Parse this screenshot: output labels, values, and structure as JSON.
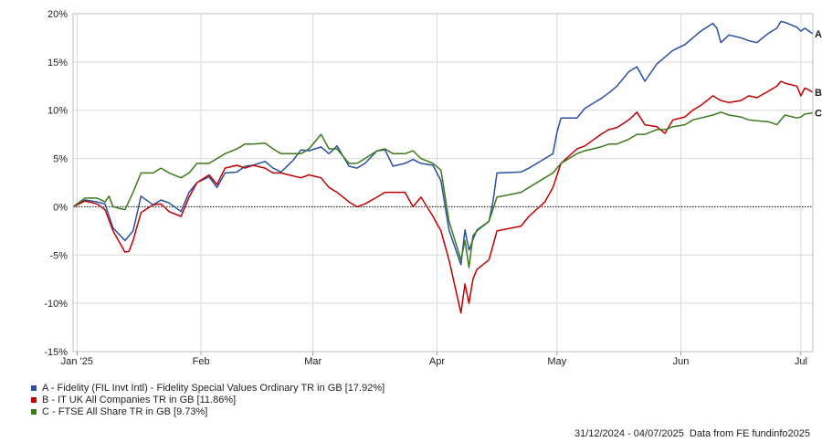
{
  "chart_data": {
    "type": "line",
    "ylim": [
      -15,
      20
    ],
    "yticks": [
      -15,
      -10,
      -5,
      0,
      5,
      10,
      15,
      20
    ],
    "ytick_labels": [
      "-15%",
      "-10%",
      "-5%",
      "0%",
      "5%",
      "10%",
      "15%",
      "20%"
    ],
    "xlim": [
      "2024-12-31",
      "2025-07-04"
    ],
    "xticks": [
      {
        "date": "2025-01-01",
        "label": "Jan '25"
      },
      {
        "date": "2025-02-01",
        "label": "Feb"
      },
      {
        "date": "2025-03-01",
        "label": "Mar"
      },
      {
        "date": "2025-04-01",
        "label": "Apr"
      },
      {
        "date": "2025-05-01",
        "label": "May"
      },
      {
        "date": "2025-06-01",
        "label": "Jun"
      },
      {
        "date": "2025-07-01",
        "label": "Jul"
      }
    ],
    "grid": true,
    "legend_position": "bottom-left",
    "series": [
      {
        "name": "A - Fidelity (FIL Invt Intl) - Fidelity Special Values Ordinary TR in GB [17.92%]",
        "end_label": "A",
        "color": "#2b4fa3",
        "points": [
          [
            "2024-12-31",
            0
          ],
          [
            "2025-01-03",
            0.7
          ],
          [
            "2025-01-06",
            0.5
          ],
          [
            "2025-01-08",
            0.3
          ],
          [
            "2025-01-10",
            -2.2
          ],
          [
            "2025-01-13",
            -3.5
          ],
          [
            "2025-01-15",
            -2.5
          ],
          [
            "2025-01-17",
            1.1
          ],
          [
            "2025-01-20",
            0.2
          ],
          [
            "2025-01-22",
            0.7
          ],
          [
            "2025-01-24",
            0.4
          ],
          [
            "2025-01-27",
            -0.5
          ],
          [
            "2025-01-29",
            1.5
          ],
          [
            "2025-01-31",
            2.5
          ],
          [
            "2025-02-03",
            3.1
          ],
          [
            "2025-02-05",
            2.0
          ],
          [
            "2025-02-07",
            3.5
          ],
          [
            "2025-02-10",
            3.6
          ],
          [
            "2025-02-12",
            4.2
          ],
          [
            "2025-02-14",
            4.3
          ],
          [
            "2025-02-17",
            4.7
          ],
          [
            "2025-02-19",
            4.0
          ],
          [
            "2025-02-21",
            3.6
          ],
          [
            "2025-02-24",
            4.8
          ],
          [
            "2025-02-26",
            5.9
          ],
          [
            "2025-02-28",
            5.8
          ],
          [
            "2025-03-03",
            6.2
          ],
          [
            "2025-03-05",
            5.5
          ],
          [
            "2025-03-07",
            6.3
          ],
          [
            "2025-03-10",
            4.2
          ],
          [
            "2025-03-12",
            4.0
          ],
          [
            "2025-03-14",
            4.5
          ],
          [
            "2025-03-17",
            5.8
          ],
          [
            "2025-03-19",
            5.9
          ],
          [
            "2025-03-21",
            4.2
          ],
          [
            "2025-03-24",
            4.5
          ],
          [
            "2025-03-26",
            4.9
          ],
          [
            "2025-03-28",
            4.5
          ],
          [
            "2025-03-31",
            4.3
          ],
          [
            "2025-04-02",
            2.7
          ],
          [
            "2025-04-04",
            -2.4
          ],
          [
            "2025-04-07",
            -6.0
          ],
          [
            "2025-04-08",
            -2.4
          ],
          [
            "2025-04-09",
            -4.5
          ],
          [
            "2025-04-10",
            -3.4
          ],
          [
            "2025-04-11",
            -2.4
          ],
          [
            "2025-04-14",
            -1.5
          ],
          [
            "2025-04-15",
            0.5
          ],
          [
            "2025-04-16",
            3.5
          ],
          [
            "2025-04-22",
            3.6
          ],
          [
            "2025-04-24",
            4.0
          ],
          [
            "2025-04-28",
            5.0
          ],
          [
            "2025-04-30",
            5.5
          ],
          [
            "2025-05-01",
            7.7
          ],
          [
            "2025-05-02",
            9.2
          ],
          [
            "2025-05-06",
            9.2
          ],
          [
            "2025-05-08",
            10.2
          ],
          [
            "2025-05-12",
            11.2
          ],
          [
            "2025-05-14",
            11.8
          ],
          [
            "2025-05-16",
            12.5
          ],
          [
            "2025-05-19",
            14.0
          ],
          [
            "2025-05-21",
            14.5
          ],
          [
            "2025-05-23",
            13.0
          ],
          [
            "2025-05-26",
            14.8
          ],
          [
            "2025-05-28",
            15.5
          ],
          [
            "2025-05-30",
            16.2
          ],
          [
            "2025-06-02",
            16.8
          ],
          [
            "2025-06-04",
            17.5
          ],
          [
            "2025-06-06",
            18.2
          ],
          [
            "2025-06-09",
            19.0
          ],
          [
            "2025-06-10",
            18.5
          ],
          [
            "2025-06-11",
            17.0
          ],
          [
            "2025-06-13",
            17.8
          ],
          [
            "2025-06-16",
            17.5
          ],
          [
            "2025-06-18",
            17.2
          ],
          [
            "2025-06-20",
            17.0
          ],
          [
            "2025-06-23",
            18.0
          ],
          [
            "2025-06-25",
            18.5
          ],
          [
            "2025-06-26",
            19.2
          ],
          [
            "2025-06-27",
            19.1
          ],
          [
            "2025-06-30",
            18.6
          ],
          [
            "2025-07-01",
            18.2
          ],
          [
            "2025-07-02",
            18.5
          ],
          [
            "2025-07-03",
            18.2
          ],
          [
            "2025-07-04",
            17.92
          ]
        ]
      },
      {
        "name": "B - IT UK All Companies TR in GB [11.86%]",
        "end_label": "B",
        "color": "#c00000",
        "points": [
          [
            "2024-12-31",
            0
          ],
          [
            "2025-01-03",
            0.6
          ],
          [
            "2025-01-06",
            0.3
          ],
          [
            "2025-01-08",
            -0.3
          ],
          [
            "2025-01-10",
            -2.5
          ],
          [
            "2025-01-13",
            -4.7
          ],
          [
            "2025-01-14",
            -4.6
          ],
          [
            "2025-01-15",
            -3.5
          ],
          [
            "2025-01-17",
            -0.6
          ],
          [
            "2025-01-20",
            0.2
          ],
          [
            "2025-01-22",
            0.3
          ],
          [
            "2025-01-24",
            -0.5
          ],
          [
            "2025-01-27",
            -1.0
          ],
          [
            "2025-01-29",
            1.0
          ],
          [
            "2025-01-31",
            2.5
          ],
          [
            "2025-02-03",
            3.3
          ],
          [
            "2025-02-05",
            2.3
          ],
          [
            "2025-02-07",
            4.0
          ],
          [
            "2025-02-10",
            4.3
          ],
          [
            "2025-02-12",
            4.0
          ],
          [
            "2025-02-14",
            4.3
          ],
          [
            "2025-02-17",
            4.0
          ],
          [
            "2025-02-19",
            3.5
          ],
          [
            "2025-02-21",
            3.5
          ],
          [
            "2025-02-24",
            3.2
          ],
          [
            "2025-02-26",
            3.0
          ],
          [
            "2025-02-28",
            3.3
          ],
          [
            "2025-03-03",
            3.0
          ],
          [
            "2025-03-05",
            2.0
          ],
          [
            "2025-03-07",
            1.5
          ],
          [
            "2025-03-10",
            0.5
          ],
          [
            "2025-03-12",
            0.0
          ],
          [
            "2025-03-14",
            0.3
          ],
          [
            "2025-03-17",
            1.0
          ],
          [
            "2025-03-19",
            1.5
          ],
          [
            "2025-03-21",
            1.5
          ],
          [
            "2025-03-24",
            1.5
          ],
          [
            "2025-03-26",
            0.0
          ],
          [
            "2025-03-28",
            1.0
          ],
          [
            "2025-03-31",
            -1.0
          ],
          [
            "2025-04-02",
            -2.5
          ],
          [
            "2025-04-04",
            -5.5
          ],
          [
            "2025-04-07",
            -11.0
          ],
          [
            "2025-04-08",
            -8.0
          ],
          [
            "2025-04-09",
            -10.0
          ],
          [
            "2025-04-10",
            -7.5
          ],
          [
            "2025-04-11",
            -6.5
          ],
          [
            "2025-04-14",
            -5.5
          ],
          [
            "2025-04-16",
            -2.5
          ],
          [
            "2025-04-22",
            -2.0
          ],
          [
            "2025-04-24",
            -1.0
          ],
          [
            "2025-04-28",
            0.5
          ],
          [
            "2025-04-30",
            2.0
          ],
          [
            "2025-05-02",
            4.5
          ],
          [
            "2025-05-06",
            6.0
          ],
          [
            "2025-05-08",
            6.3
          ],
          [
            "2025-05-12",
            7.5
          ],
          [
            "2025-05-14",
            8.0
          ],
          [
            "2025-05-16",
            8.2
          ],
          [
            "2025-05-19",
            9.0
          ],
          [
            "2025-05-21",
            9.8
          ],
          [
            "2025-05-23",
            8.5
          ],
          [
            "2025-05-26",
            8.3
          ],
          [
            "2025-05-28",
            7.6
          ],
          [
            "2025-05-30",
            9.0
          ],
          [
            "2025-06-02",
            9.3
          ],
          [
            "2025-06-04",
            10.0
          ],
          [
            "2025-06-06",
            10.5
          ],
          [
            "2025-06-09",
            11.5
          ],
          [
            "2025-06-11",
            11.0
          ],
          [
            "2025-06-13",
            10.8
          ],
          [
            "2025-06-16",
            11.0
          ],
          [
            "2025-06-18",
            11.5
          ],
          [
            "2025-06-20",
            11.3
          ],
          [
            "2025-06-23",
            12.0
          ],
          [
            "2025-06-25",
            12.5
          ],
          [
            "2025-06-26",
            13.0
          ],
          [
            "2025-06-27",
            12.8
          ],
          [
            "2025-06-30",
            12.5
          ],
          [
            "2025-07-01",
            11.5
          ],
          [
            "2025-07-02",
            12.3
          ],
          [
            "2025-07-03",
            12.1
          ],
          [
            "2025-07-04",
            11.86
          ]
        ]
      },
      {
        "name": "C - FTSE All Share TR in GB [9.73%]",
        "end_label": "C",
        "color": "#3c7a1a",
        "points": [
          [
            "2024-12-31",
            0
          ],
          [
            "2025-01-03",
            0.9
          ],
          [
            "2025-01-06",
            0.9
          ],
          [
            "2025-01-08",
            0.5
          ],
          [
            "2025-01-09",
            1.1
          ],
          [
            "2025-01-10",
            0.0
          ],
          [
            "2025-01-13",
            -0.3
          ],
          [
            "2025-01-15",
            1.5
          ],
          [
            "2025-01-17",
            3.5
          ],
          [
            "2025-01-20",
            3.5
          ],
          [
            "2025-01-22",
            4.0
          ],
          [
            "2025-01-24",
            3.5
          ],
          [
            "2025-01-27",
            3.0
          ],
          [
            "2025-01-29",
            3.5
          ],
          [
            "2025-01-31",
            4.5
          ],
          [
            "2025-02-03",
            4.5
          ],
          [
            "2025-02-05",
            5.0
          ],
          [
            "2025-02-07",
            5.5
          ],
          [
            "2025-02-10",
            6.0
          ],
          [
            "2025-02-12",
            6.5
          ],
          [
            "2025-02-14",
            6.5
          ],
          [
            "2025-02-17",
            6.6
          ],
          [
            "2025-02-19",
            6.0
          ],
          [
            "2025-02-21",
            5.5
          ],
          [
            "2025-02-24",
            5.5
          ],
          [
            "2025-02-26",
            5.5
          ],
          [
            "2025-02-28",
            6.0
          ],
          [
            "2025-03-03",
            7.5
          ],
          [
            "2025-03-05",
            6.0
          ],
          [
            "2025-03-07",
            6.0
          ],
          [
            "2025-03-10",
            4.5
          ],
          [
            "2025-03-12",
            4.5
          ],
          [
            "2025-03-14",
            5.0
          ],
          [
            "2025-03-17",
            5.8
          ],
          [
            "2025-03-19",
            6.0
          ],
          [
            "2025-03-21",
            5.5
          ],
          [
            "2025-03-24",
            5.5
          ],
          [
            "2025-03-26",
            5.8
          ],
          [
            "2025-03-28",
            5.0
          ],
          [
            "2025-03-31",
            4.5
          ],
          [
            "2025-04-02",
            3.8
          ],
          [
            "2025-04-04",
            -1.5
          ],
          [
            "2025-04-07",
            -5.5
          ],
          [
            "2025-04-08",
            -3.5
          ],
          [
            "2025-04-09",
            -6.3
          ],
          [
            "2025-04-10",
            -3.0
          ],
          [
            "2025-04-11",
            -2.5
          ],
          [
            "2025-04-14",
            -1.5
          ],
          [
            "2025-04-16",
            1.0
          ],
          [
            "2025-04-22",
            1.5
          ],
          [
            "2025-04-24",
            2.0
          ],
          [
            "2025-04-28",
            3.0
          ],
          [
            "2025-04-30",
            3.5
          ],
          [
            "2025-05-02",
            4.5
          ],
          [
            "2025-05-06",
            5.5
          ],
          [
            "2025-05-08",
            5.8
          ],
          [
            "2025-05-12",
            6.2
          ],
          [
            "2025-05-14",
            6.5
          ],
          [
            "2025-05-16",
            6.5
          ],
          [
            "2025-05-19",
            7.0
          ],
          [
            "2025-05-21",
            7.5
          ],
          [
            "2025-05-23",
            7.5
          ],
          [
            "2025-05-26",
            8.0
          ],
          [
            "2025-05-28",
            8.0
          ],
          [
            "2025-05-30",
            8.3
          ],
          [
            "2025-06-02",
            8.5
          ],
          [
            "2025-06-04",
            9.0
          ],
          [
            "2025-06-06",
            9.2
          ],
          [
            "2025-06-09",
            9.5
          ],
          [
            "2025-06-11",
            9.8
          ],
          [
            "2025-06-13",
            9.5
          ],
          [
            "2025-06-16",
            9.3
          ],
          [
            "2025-06-18",
            9.0
          ],
          [
            "2025-06-20",
            8.9
          ],
          [
            "2025-06-23",
            8.8
          ],
          [
            "2025-06-25",
            8.5
          ],
          [
            "2025-06-27",
            9.5
          ],
          [
            "2025-06-30",
            9.2
          ],
          [
            "2025-07-01",
            9.3
          ],
          [
            "2025-07-02",
            9.6
          ],
          [
            "2025-07-04",
            9.73
          ]
        ]
      }
    ]
  },
  "footer": {
    "date_range": "31/12/2024 - 04/07/2025",
    "source": "Data from FE fundinfo2025"
  }
}
